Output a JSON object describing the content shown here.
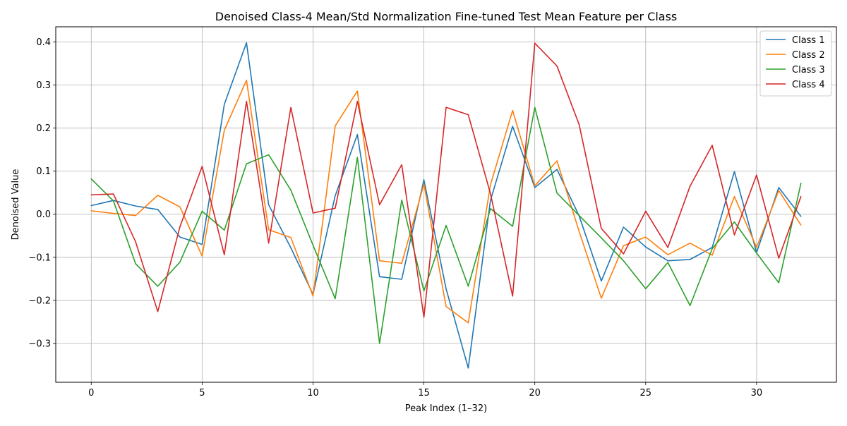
{
  "chart_data": {
    "type": "line",
    "title": "Denoised Class-4 Mean/Std Normalization Fine-tuned Test Mean Feature per Class",
    "xlabel": "Peak Index (1–32)",
    "ylabel": "Denoised Value",
    "xlim": [
      -1.6,
      33.6
    ],
    "ylim": [
      -0.39,
      0.435
    ],
    "xticks": [
      0,
      5,
      10,
      15,
      20,
      25,
      30
    ],
    "yticks": [
      -0.3,
      -0.2,
      -0.1,
      0.0,
      0.1,
      0.2,
      0.3,
      0.4
    ],
    "ytick_labels": [
      "−0.3",
      "−0.2",
      "−0.1",
      "0.0",
      "0.1",
      "0.2",
      "0.3",
      "0.4"
    ],
    "xtick_labels": [
      "0",
      "5",
      "10",
      "15",
      "20",
      "25",
      "30"
    ],
    "grid": true,
    "legend_position": "top-right",
    "x": [
      0,
      1,
      2,
      3,
      4,
      5,
      6,
      7,
      8,
      9,
      10,
      11,
      12,
      13,
      14,
      15,
      16,
      17,
      18,
      19,
      20,
      21,
      22,
      23,
      24,
      25,
      26,
      27,
      28,
      29,
      30,
      31,
      32
    ],
    "series": [
      {
        "name": "Class 1",
        "color": "#1f77b4",
        "values": [
          0.02,
          0.032,
          0.019,
          0.011,
          -0.053,
          -0.07,
          0.255,
          0.398,
          0.022,
          -0.078,
          -0.186,
          0.043,
          0.185,
          -0.145,
          -0.151,
          0.08,
          -0.173,
          -0.357,
          0.032,
          0.204,
          0.062,
          0.104,
          -0.004,
          -0.155,
          -0.03,
          -0.076,
          -0.108,
          -0.105,
          -0.077,
          0.099,
          -0.089,
          0.062,
          -0.005
        ]
      },
      {
        "name": "Class 2",
        "color": "#ff7f0e",
        "values": [
          0.008,
          0.002,
          -0.003,
          0.044,
          0.017,
          -0.097,
          0.195,
          0.311,
          -0.036,
          -0.054,
          -0.19,
          0.205,
          0.286,
          -0.108,
          -0.114,
          0.07,
          -0.214,
          -0.252,
          0.068,
          0.241,
          0.066,
          0.124,
          -0.04,
          -0.195,
          -0.073,
          -0.053,
          -0.094,
          -0.067,
          -0.095,
          0.041,
          -0.077,
          0.055,
          -0.025
        ]
      },
      {
        "name": "Class 3",
        "color": "#2ca02c",
        "values": [
          0.082,
          0.031,
          -0.115,
          -0.167,
          -0.111,
          0.007,
          -0.037,
          0.117,
          0.138,
          0.056,
          -0.072,
          -0.196,
          0.132,
          -0.3,
          0.033,
          -0.178,
          -0.026,
          -0.167,
          0.013,
          -0.028,
          0.248,
          0.049,
          -0.003,
          -0.055,
          -0.108,
          -0.173,
          -0.112,
          -0.212,
          -0.08,
          -0.018,
          -0.09,
          -0.159,
          0.072
        ]
      },
      {
        "name": "Class 4",
        "color": "#d62728",
        "values": [
          0.045,
          0.047,
          -0.064,
          -0.226,
          -0.029,
          0.111,
          -0.094,
          0.262,
          -0.067,
          0.248,
          0.003,
          0.014,
          0.262,
          0.022,
          0.115,
          -0.239,
          0.248,
          0.231,
          0.048,
          -0.19,
          0.397,
          0.344,
          0.208,
          -0.033,
          -0.092,
          0.007,
          -0.077,
          0.065,
          0.16,
          -0.048,
          0.091,
          -0.102,
          0.041
        ]
      }
    ]
  }
}
